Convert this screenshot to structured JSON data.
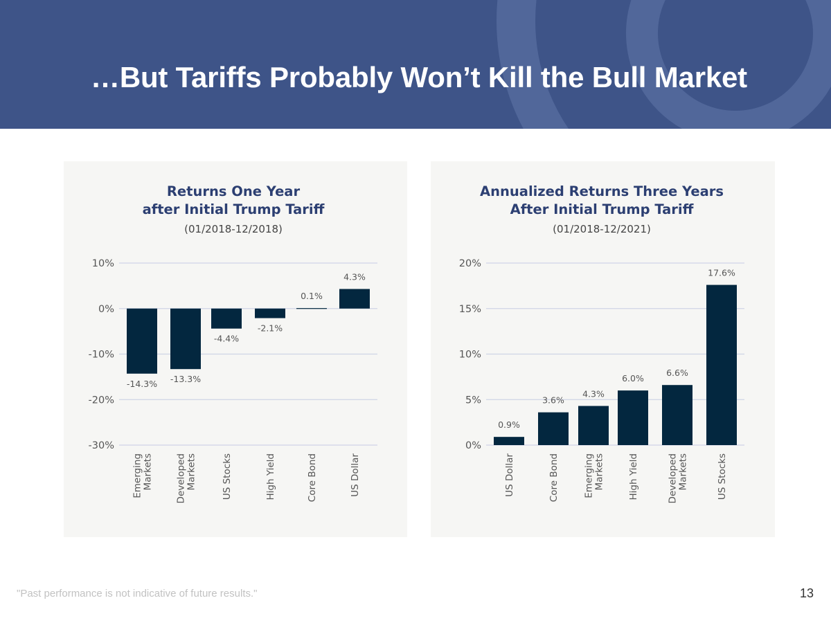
{
  "slide": {
    "title": "…But Tariffs Probably Won’t Kill the Bull Market",
    "footer_note": "\"Past performance is not indicative of future results.\"",
    "page_number": "13"
  },
  "colors": {
    "header_bg": "#3e5488",
    "bar": "#03273f",
    "chart_title": "#2c3f72",
    "panel_bg": "#f6f6f4"
  },
  "chart_data": [
    {
      "type": "bar",
      "title_lines": [
        "Returns One Year",
        "after Initial Trump Tariff"
      ],
      "subtitle": "(01/2018-12/2018)",
      "categories": [
        [
          "Emerging",
          "Markets"
        ],
        [
          "Developed",
          "Markets"
        ],
        [
          "US Stocks"
        ],
        [
          "High Yield"
        ],
        [
          "Core Bond"
        ],
        [
          "US Dollar"
        ]
      ],
      "values": [
        -14.3,
        -13.3,
        -4.4,
        -2.1,
        0.1,
        4.3
      ],
      "value_labels": [
        "-14.3%",
        "-13.3%",
        "-4.4%",
        "-2.1%",
        "0.1%",
        "4.3%"
      ],
      "yticks": [
        10,
        0,
        -10,
        -20,
        -30
      ],
      "ytick_labels": [
        "10%",
        "0%",
        "-10%",
        "-20%",
        "-30%"
      ],
      "ylim": [
        -30,
        10
      ],
      "xlabel": "",
      "ylabel": "",
      "grid": true
    },
    {
      "type": "bar",
      "title_lines": [
        "Annualized Returns Three Years",
        "After Initial Trump Tariff"
      ],
      "subtitle": "(01/2018-12/2021)",
      "categories": [
        [
          "US Dollar"
        ],
        [
          "Core Bond"
        ],
        [
          "Emerging",
          "Markets"
        ],
        [
          "High Yield"
        ],
        [
          "Developed",
          "Markets"
        ],
        [
          "US Stocks"
        ]
      ],
      "values": [
        0.9,
        3.6,
        4.3,
        6.0,
        6.6,
        17.6
      ],
      "value_labels": [
        "0.9%",
        "3.6%",
        "4.3%",
        "6.0%",
        "6.6%",
        "17.6%"
      ],
      "yticks": [
        20,
        15,
        10,
        5,
        0
      ],
      "ytick_labels": [
        "20%",
        "15%",
        "10%",
        "5%",
        "0%"
      ],
      "ylim": [
        0,
        20
      ],
      "xlabel": "",
      "ylabel": "",
      "grid": true
    }
  ]
}
